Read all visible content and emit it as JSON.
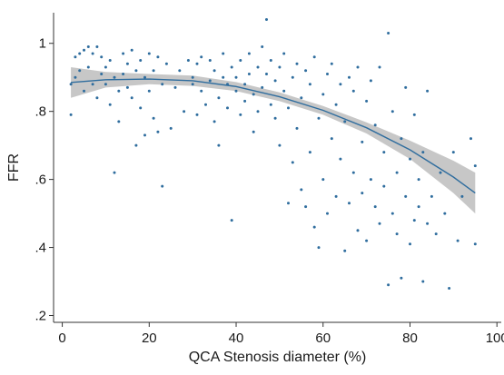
{
  "chart_data": {
    "type": "scatter",
    "xlabel": "QCA Stenosis diameter (%)",
    "ylabel": "FFR",
    "xlim": [
      -2,
      101
    ],
    "ylim": [
      0.18,
      1.09
    ],
    "xticks": [
      0,
      20,
      40,
      60,
      80,
      100
    ],
    "xtick_labels": [
      "0",
      "20",
      "40",
      "60",
      "80",
      "100"
    ],
    "yticks": [
      0.2,
      0.4,
      0.6,
      0.8,
      1.0
    ],
    "ytick_labels": [
      ".2",
      ".4",
      ".6",
      ".8",
      "1"
    ],
    "grid": false,
    "legend": "none",
    "colors": {
      "points": "#2f6d9e",
      "fit_line": "#2f6d9e",
      "ci_band": "#bdbdbd",
      "axis": "#333333"
    },
    "fit": {
      "type": "quadratic",
      "x": [
        2,
        10,
        20,
        30,
        40,
        50,
        60,
        70,
        80,
        90,
        95
      ],
      "y": [
        0.885,
        0.893,
        0.895,
        0.89,
        0.873,
        0.843,
        0.803,
        0.752,
        0.687,
        0.607,
        0.56
      ],
      "ci_lower": [
        0.84,
        0.87,
        0.88,
        0.875,
        0.86,
        0.83,
        0.79,
        0.735,
        0.66,
        0.56,
        0.5
      ],
      "ci_upper": [
        0.93,
        0.916,
        0.91,
        0.905,
        0.886,
        0.856,
        0.816,
        0.768,
        0.714,
        0.655,
        0.62
      ]
    },
    "points": [
      [
        2,
        0.79
      ],
      [
        2,
        0.88
      ],
      [
        3,
        0.96
      ],
      [
        3,
        0.9
      ],
      [
        4,
        0.97
      ],
      [
        4,
        0.92
      ],
      [
        5,
        0.86
      ],
      [
        5,
        0.98
      ],
      [
        6,
        0.99
      ],
      [
        6,
        0.93
      ],
      [
        7,
        0.88
      ],
      [
        7,
        0.97
      ],
      [
        8,
        0.99
      ],
      [
        8,
        0.84
      ],
      [
        9,
        0.91
      ],
      [
        9,
        0.96
      ],
      [
        10,
        0.88
      ],
      [
        10,
        0.93
      ],
      [
        11,
        0.82
      ],
      [
        11,
        0.95
      ],
      [
        12,
        0.62
      ],
      [
        12,
        0.9
      ],
      [
        13,
        0.77
      ],
      [
        13,
        0.86
      ],
      [
        14,
        0.91
      ],
      [
        14,
        0.97
      ],
      [
        15,
        0.94
      ],
      [
        15,
        0.87
      ],
      [
        16,
        0.98
      ],
      [
        16,
        0.84
      ],
      [
        17,
        0.92
      ],
      [
        17,
        0.7
      ],
      [
        18,
        0.81
      ],
      [
        18,
        0.95
      ],
      [
        19,
        0.73
      ],
      [
        19,
        0.9
      ],
      [
        20,
        0.86
      ],
      [
        20,
        0.97
      ],
      [
        21,
        0.92
      ],
      [
        21,
        0.78
      ],
      [
        22,
        0.96
      ],
      [
        22,
        0.74
      ],
      [
        23,
        0.58
      ],
      [
        23,
        0.88
      ],
      [
        24,
        0.94
      ],
      [
        25,
        0.75
      ],
      [
        26,
        0.87
      ],
      [
        27,
        0.92
      ],
      [
        28,
        0.8
      ],
      [
        29,
        0.95
      ],
      [
        30,
        0.88
      ],
      [
        30,
        0.9
      ],
      [
        31,
        0.94
      ],
      [
        31,
        0.79
      ],
      [
        32,
        0.96
      ],
      [
        32,
        0.86
      ],
      [
        33,
        0.82
      ],
      [
        34,
        0.89
      ],
      [
        34,
        0.95
      ],
      [
        35,
        0.77
      ],
      [
        35,
        0.92
      ],
      [
        36,
        0.84
      ],
      [
        36,
        0.7
      ],
      [
        37,
        0.9
      ],
      [
        37,
        0.97
      ],
      [
        38,
        0.81
      ],
      [
        38,
        0.88
      ],
      [
        39,
        0.93
      ],
      [
        39,
        0.48
      ],
      [
        40,
        0.86
      ],
      [
        40,
        0.9
      ],
      [
        41,
        0.79
      ],
      [
        41,
        0.95
      ],
      [
        42,
        0.88
      ],
      [
        42,
        0.83
      ],
      [
        43,
        0.97
      ],
      [
        43,
        0.91
      ],
      [
        44,
        0.85
      ],
      [
        44,
        0.74
      ],
      [
        45,
        0.93
      ],
      [
        45,
        0.8
      ],
      [
        46,
        0.99
      ],
      [
        46,
        0.87
      ],
      [
        47,
        1.07
      ],
      [
        47,
        0.91
      ],
      [
        48,
        0.82
      ],
      [
        48,
        0.95
      ],
      [
        49,
        0.78
      ],
      [
        49,
        0.89
      ],
      [
        50,
        0.93
      ],
      [
        50,
        0.7
      ],
      [
        51,
        0.86
      ],
      [
        51,
        0.97
      ],
      [
        52,
        0.53
      ],
      [
        52,
        0.81
      ],
      [
        53,
        0.9
      ],
      [
        53,
        0.65
      ],
      [
        54,
        0.75
      ],
      [
        54,
        0.94
      ],
      [
        55,
        0.57
      ],
      [
        55,
        0.84
      ],
      [
        56,
        0.92
      ],
      [
        56,
        0.52
      ],
      [
        57,
        0.68
      ],
      [
        57,
        0.88
      ],
      [
        58,
        0.96
      ],
      [
        58,
        0.46
      ],
      [
        59,
        0.4
      ],
      [
        59,
        0.78
      ],
      [
        60,
        0.85
      ],
      [
        60,
        0.6
      ],
      [
        61,
        0.91
      ],
      [
        61,
        0.5
      ],
      [
        62,
        0.72
      ],
      [
        62,
        0.94
      ],
      [
        63,
        0.55
      ],
      [
        63,
        0.82
      ],
      [
        64,
        0.88
      ],
      [
        64,
        0.66
      ],
      [
        65,
        0.39
      ],
      [
        65,
        0.77
      ],
      [
        66,
        0.9
      ],
      [
        66,
        0.53
      ],
      [
        67,
        0.62
      ],
      [
        67,
        0.86
      ],
      [
        68,
        0.93
      ],
      [
        68,
        0.45
      ],
      [
        69,
        0.71
      ],
      [
        69,
        0.56
      ],
      [
        70,
        0.83
      ],
      [
        70,
        0.42
      ],
      [
        71,
        0.89
      ],
      [
        71,
        0.6
      ],
      [
        72,
        0.52
      ],
      [
        72,
        0.76
      ],
      [
        73,
        0.47
      ],
      [
        73,
        0.93
      ],
      [
        74,
        0.68
      ],
      [
        74,
        0.58
      ],
      [
        75,
        1.03
      ],
      [
        75,
        0.29
      ],
      [
        76,
        0.8
      ],
      [
        76,
        0.5
      ],
      [
        77,
        0.44
      ],
      [
        77,
        0.62
      ],
      [
        78,
        0.31
      ],
      [
        78,
        0.72
      ],
      [
        79,
        0.87
      ],
      [
        79,
        0.55
      ],
      [
        80,
        0.41
      ],
      [
        80,
        0.66
      ],
      [
        81,
        0.48
      ],
      [
        81,
        0.79
      ],
      [
        82,
        0.6
      ],
      [
        82,
        0.52
      ],
      [
        83,
        0.3
      ],
      [
        83,
        0.68
      ],
      [
        84,
        0.86
      ],
      [
        84,
        0.47
      ],
      [
        85,
        0.55
      ],
      [
        86,
        0.44
      ],
      [
        87,
        0.62
      ],
      [
        88,
        0.5
      ],
      [
        89,
        0.28
      ],
      [
        90,
        0.68
      ],
      [
        91,
        0.42
      ],
      [
        92,
        0.55
      ],
      [
        94,
        0.72
      ],
      [
        95,
        0.41
      ],
      [
        95,
        0.64
      ]
    ]
  }
}
